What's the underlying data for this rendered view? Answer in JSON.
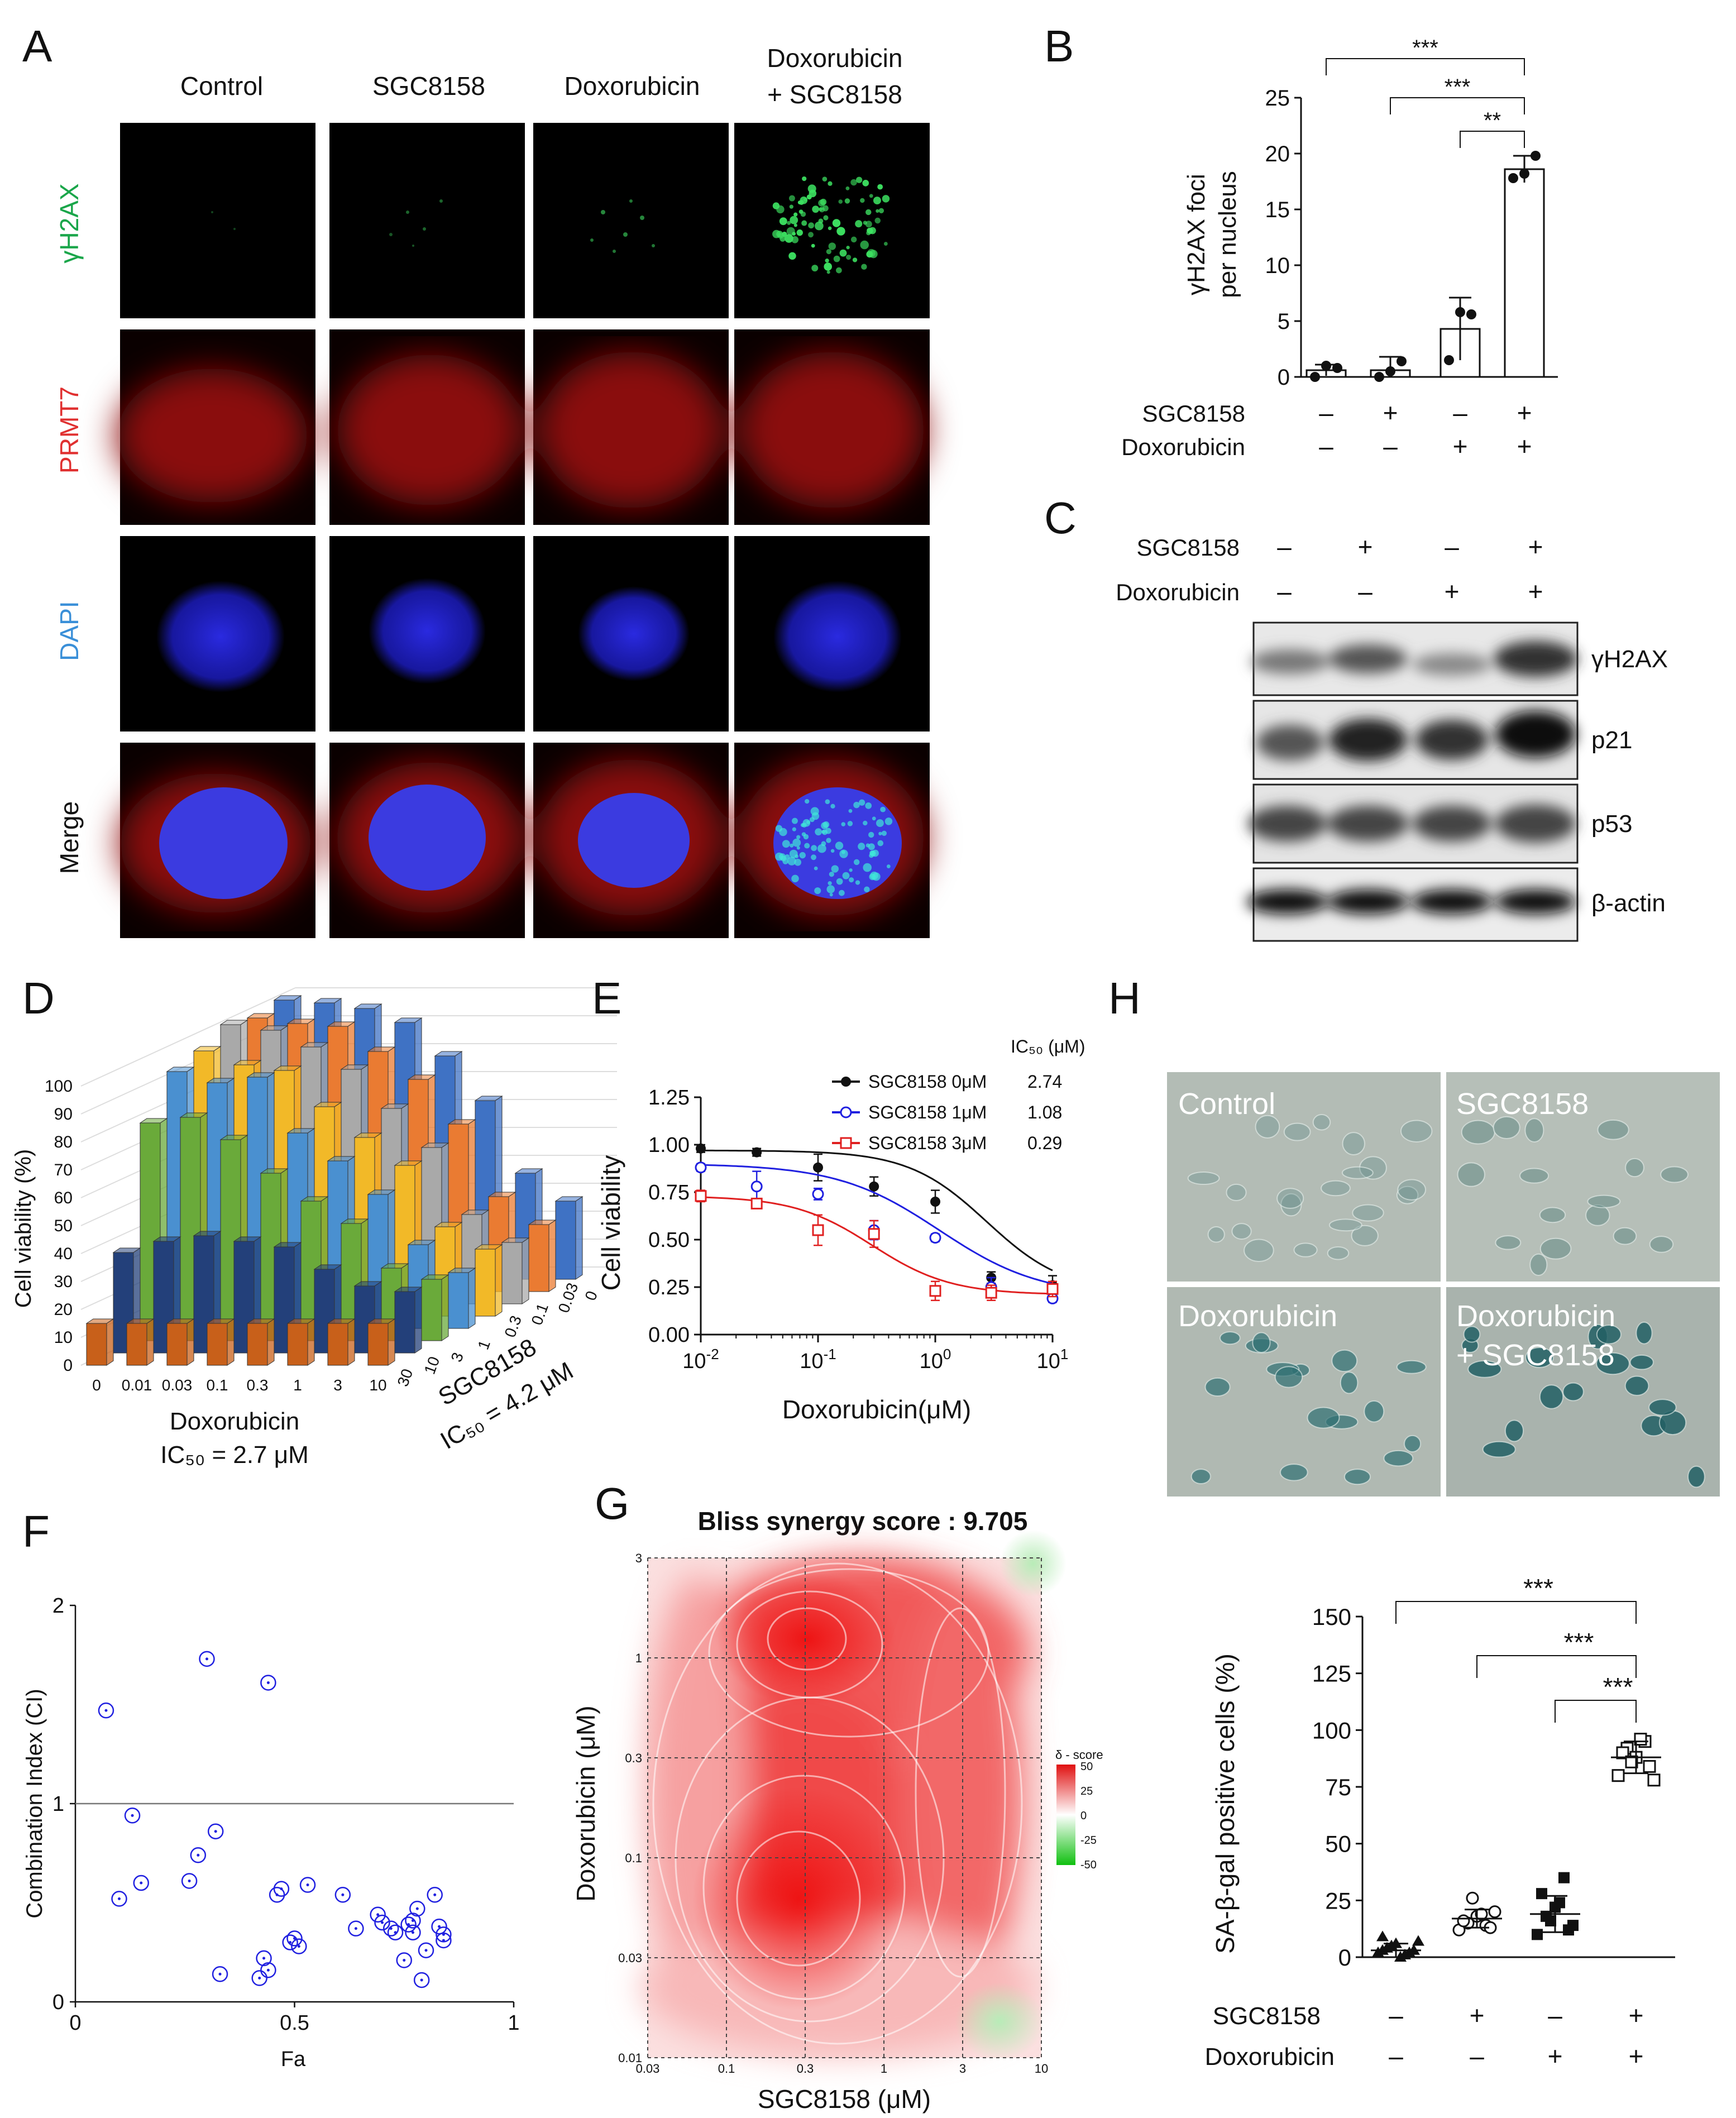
{
  "panel_letters": [
    "A",
    "B",
    "C",
    "D",
    "E",
    "F",
    "G",
    "H"
  ],
  "A": {
    "columns": [
      "Control",
      "SGC8158",
      "Doxorubicin",
      "Doxorubicin",
      "+ SGC8158"
    ],
    "rows": [
      "γH2AX",
      "PRMT7",
      "DAPI",
      "Merge"
    ],
    "row_colors": [
      "#1aa64a",
      "#e03030",
      "#3a8fd8",
      "#111111"
    ]
  },
  "B": {
    "stars": [
      "***",
      "***",
      "**"
    ],
    "rows": [
      {
        "label": "SGC8158",
        "signs": [
          "–",
          "+",
          "–",
          "+"
        ]
      },
      {
        "label": "Doxorubicin",
        "signs": [
          "–",
          "–",
          "+",
          "+"
        ]
      }
    ]
  },
  "C": {
    "rows": [
      {
        "label": "SGC8158",
        "signs": [
          "–",
          "+",
          "–",
          "+"
        ]
      },
      {
        "label": "Doxorubicin",
        "signs": [
          "–",
          "–",
          "+",
          "+"
        ]
      }
    ],
    "bands": [
      "γH2AX",
      "p21",
      "p53",
      "β-actin"
    ]
  },
  "D": {
    "z_ticks": [
      "100",
      "90",
      "80",
      "70",
      "60",
      "50",
      "40",
      "30",
      "20",
      "10",
      "0"
    ],
    "x_ticks": [
      "0",
      "0.01",
      "0.03",
      "0.1",
      "0.3",
      "1",
      "3",
      "10"
    ],
    "depth_ticks": [
      "30",
      "10",
      "3",
      "1",
      "0.3",
      "0.1",
      "0.03",
      "0"
    ],
    "ylabel": "Cell viability (%)",
    "xlabel_1": "Doxorubicin",
    "xlabel_2": "IC₅₀ = 2.7 μM",
    "dlabel_1": "SGC8158",
    "dlabel_2": "IC₅₀ = 4.2 μM",
    "colors": [
      "#c8601a",
      "#23407a",
      "#6aaa3a",
      "#4a90d0",
      "#f2b928",
      "#a9a9a9",
      "#ea7b32",
      "#3f72c4"
    ]
  },
  "E": {
    "ic50_header": "IC₅₀ (μM)",
    "legend": [
      {
        "name": "SGC8158 0μM",
        "ic50": "2.74",
        "color": "#111111"
      },
      {
        "name": "SGC8158 1μM",
        "ic50": "1.08",
        "color": "#2020e0"
      },
      {
        "name": "SGC8158 3μM",
        "ic50": "0.29",
        "color": "#e02020"
      }
    ],
    "ylabel": "Cell viability",
    "xlabel": "Doxorubicin(μM)"
  },
  "F": {
    "xlabel": "Fa",
    "ylabel": "Combination Index (CI)"
  },
  "G": {
    "title": "Bliss synergy score : 9.705",
    "xlabel": "SGC8158 (μM)",
    "ylabel": "Doxorubicin (μM)",
    "x_ticks": [
      "0.03",
      "0.1",
      "0.3",
      "1",
      "3",
      "10"
    ],
    "y_ticks": [
      "3",
      "1",
      "0.3",
      "0.1",
      "0.03",
      "0.01"
    ],
    "legend_title": "δ - score",
    "legend_ticks": [
      "50",
      "25",
      "0",
      "-25",
      "-50"
    ]
  },
  "H": {
    "image_labels": [
      "Control",
      "SGC8158",
      "Doxorubicin",
      "Doxorubicin",
      "+ SGC8158"
    ],
    "ylabel": "SA-β-gal positive cells (%)",
    "stars": [
      "***",
      "***",
      "***"
    ],
    "rows": [
      {
        "label": "SGC8158",
        "signs": [
          "–",
          "+",
          "–",
          "+"
        ]
      },
      {
        "label": "Doxorubicin",
        "signs": [
          "–",
          "–",
          "+",
          "+"
        ]
      }
    ]
  },
  "chart_data": [
    {
      "panel": "B",
      "type": "bar",
      "categories": [
        "Control",
        "SGC8158",
        "Doxorubicin",
        "Doxorubicin + SGC8158"
      ],
      "values": [
        0.6,
        0.6,
        4.3,
        18.6
      ],
      "errors": [
        0.5,
        1.2,
        2.8,
        1.2
      ],
      "points": [
        [
          0.0,
          1.0,
          0.8
        ],
        [
          0.0,
          0.5,
          1.4
        ],
        [
          1.5,
          5.8,
          5.6
        ],
        [
          17.8,
          18.2,
          19.8
        ]
      ],
      "ylabel": "γH2AX foci per nucleus",
      "ylim": [
        0,
        25
      ],
      "yticks": [
        0,
        5,
        10,
        15,
        20,
        25
      ]
    },
    {
      "panel": "D",
      "type": "bar",
      "x": [
        0,
        0.01,
        0.03,
        0.1,
        0.3,
        1,
        3,
        10
      ],
      "series": [
        {
          "name": "30",
          "values": [
            15,
            15,
            15,
            15,
            15,
            15,
            15,
            15
          ]
        },
        {
          "name": "10",
          "values": [
            36,
            40,
            42,
            40,
            38,
            30,
            24,
            22
          ]
        },
        {
          "name": "3",
          "values": [
            78,
            80,
            72,
            60,
            50,
            42,
            26,
            22
          ]
        },
        {
          "name": "1",
          "values": [
            92,
            88,
            90,
            70,
            60,
            48,
            30,
            20
          ]
        },
        {
          "name": "0.3",
          "values": [
            95,
            90,
            88,
            75,
            64,
            54,
            32,
            24
          ]
        },
        {
          "name": "0.1",
          "values": [
            100,
            98,
            92,
            84,
            70,
            56,
            32,
            22
          ]
        },
        {
          "name": "0.03",
          "values": [
            98,
            96,
            95,
            86,
            76,
            60,
            34,
            24
          ]
        },
        {
          "name": "0",
          "values": [
            100,
            99,
            97,
            92,
            80,
            64,
            38,
            28
          ]
        }
      ],
      "zlim": [
        0,
        100
      ]
    },
    {
      "panel": "E",
      "type": "scatter",
      "xscale": "log",
      "xlim": [
        0.01,
        10
      ],
      "ylim": [
        0,
        1.25
      ],
      "xticks": [
        0.01,
        0.1,
        1,
        10
      ],
      "yticks": [
        0.0,
        0.25,
        0.5,
        0.75,
        1.0,
        1.25
      ],
      "x": [
        0.01,
        0.03,
        0.1,
        0.3,
        1,
        3,
        10
      ],
      "series": [
        {
          "name": "SGC8158 0μM",
          "values": [
            0.98,
            0.96,
            0.88,
            0.78,
            0.7,
            0.3,
            0.26
          ],
          "errors": [
            0.02,
            0.02,
            0.07,
            0.05,
            0.06,
            0.03,
            0.05
          ],
          "ic50": 2.74,
          "top": 0.97,
          "bottom": 0.22,
          "hill": 1.3
        },
        {
          "name": "SGC8158 1μM",
          "values": [
            0.88,
            0.78,
            0.74,
            0.55,
            0.51,
            0.25,
            0.19
          ],
          "errors": [
            0.02,
            0.08,
            0.03,
            0.05,
            0.02,
            0.05,
            0.02
          ],
          "ic50": 1.08,
          "top": 0.9,
          "bottom": 0.2,
          "hill": 1.0
        },
        {
          "name": "SGC8158 3μM",
          "values": [
            0.73,
            0.69,
            0.55,
            0.53,
            0.23,
            0.22,
            0.24
          ],
          "errors": [
            0.03,
            0.02,
            0.08,
            0.07,
            0.05,
            0.04,
            0.04
          ],
          "ic50": 0.29,
          "top": 0.73,
          "bottom": 0.21,
          "hill": 1.3
        }
      ]
    },
    {
      "panel": "F",
      "type": "scatter",
      "xlim": [
        0,
        1
      ],
      "ylim": [
        0,
        2
      ],
      "xticks": [
        0,
        0.5,
        1
      ],
      "yticks": [
        0,
        1,
        2
      ],
      "reference_line": 1,
      "x": [
        0.07,
        0.1,
        0.13,
        0.15,
        0.26,
        0.28,
        0.3,
        0.32,
        0.33,
        0.43,
        0.44,
        0.44,
        0.46,
        0.47,
        0.49,
        0.5,
        0.51,
        0.53,
        0.61,
        0.64,
        0.69,
        0.7,
        0.72,
        0.73,
        0.75,
        0.76,
        0.77,
        0.77,
        0.78,
        0.79,
        0.8,
        0.82,
        0.83,
        0.84,
        0.84,
        0.42
      ],
      "y": [
        1.47,
        0.52,
        0.94,
        0.6,
        0.61,
        0.74,
        1.73,
        0.86,
        0.14,
        0.22,
        1.61,
        0.16,
        0.54,
        0.57,
        0.3,
        0.32,
        0.28,
        0.59,
        0.54,
        0.37,
        0.44,
        0.4,
        0.37,
        0.35,
        0.21,
        0.39,
        0.35,
        0.41,
        0.47,
        0.11,
        0.26,
        0.54,
        0.38,
        0.34,
        0.31,
        0.12
      ]
    },
    {
      "panel": "G",
      "type": "heatmap",
      "x": [
        0.03,
        0.1,
        0.3,
        1,
        3,
        10
      ],
      "y": [
        0.01,
        0.03,
        0.1,
        0.3,
        1,
        3
      ],
      "note_scale": "δ-score, -50 to 50"
    },
    {
      "panel": "H",
      "type": "scatter",
      "categories": [
        "Control",
        "SGC8158",
        "Doxorubicin",
        "Doxorubicin + SGC8158"
      ],
      "means": [
        3,
        17,
        19,
        88
      ],
      "errors": [
        3,
        4,
        8,
        7
      ],
      "points": [
        [
          2,
          4,
          6,
          1,
          3,
          9,
          5,
          0,
          2,
          7,
          3
        ],
        [
          12,
          15,
          18,
          14,
          20,
          16,
          26,
          19,
          13
        ],
        [
          10,
          18,
          22,
          35,
          14,
          28,
          16,
          24,
          12
        ],
        [
          80,
          92,
          88,
          95,
          78,
          90,
          86,
          96,
          84
        ]
      ],
      "ylim": [
        0,
        150
      ],
      "yticks": [
        0,
        25,
        50,
        75,
        100,
        125,
        150
      ]
    }
  ]
}
